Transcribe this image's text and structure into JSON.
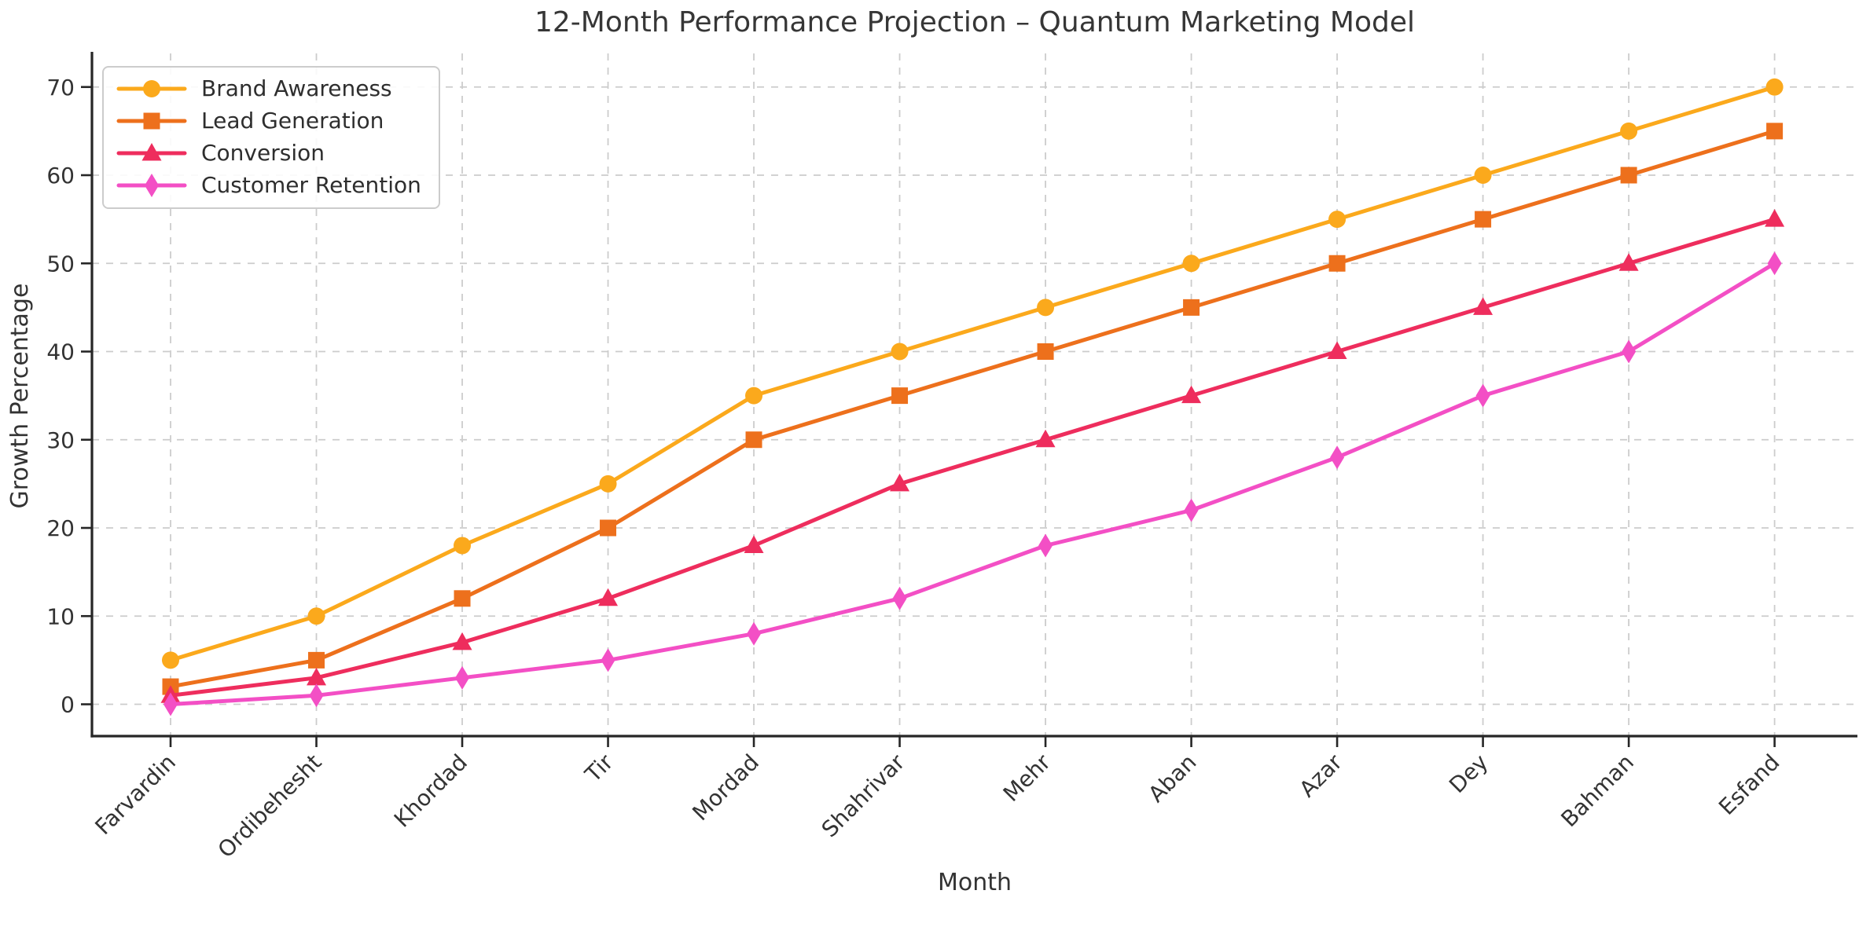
{
  "figure": {
    "title": "12-Month Performance Projection – Quantum Marketing Model"
  },
  "chart_data": {
    "type": "line",
    "title": "12-Month Performance Projection – Quantum Marketing Model",
    "xlabel": "Month",
    "ylabel": "Growth Percentage",
    "categories": [
      "Farvardin",
      "Ordibehesht",
      "Khordad",
      "Tir",
      "Mordad",
      "Shahrivar",
      "Mehr",
      "Aban",
      "Azar",
      "Dey",
      "Bahman",
      "Esfand"
    ],
    "series": [
      {
        "name": "Brand Awareness",
        "color": "#FBA91C",
        "marker": "circle",
        "values": [
          5,
          10,
          18,
          25,
          35,
          40,
          45,
          50,
          55,
          60,
          65,
          70
        ]
      },
      {
        "name": "Lead Generation",
        "color": "#ED701C",
        "marker": "square",
        "values": [
          2,
          5,
          12,
          20,
          30,
          35,
          40,
          45,
          50,
          55,
          60,
          65
        ]
      },
      {
        "name": "Conversion",
        "color": "#EE2D5D",
        "marker": "triangle",
        "values": [
          1,
          3,
          7,
          12,
          18,
          25,
          30,
          35,
          40,
          45,
          50,
          55
        ]
      },
      {
        "name": "Customer Retention",
        "color": "#F34FC5",
        "marker": "diamond",
        "values": [
          0,
          1,
          3,
          5,
          8,
          12,
          18,
          22,
          28,
          35,
          40,
          50
        ]
      }
    ],
    "ylim": [
      0,
      70
    ],
    "yticks": [
      0,
      10,
      20,
      30,
      40,
      50,
      60,
      70
    ],
    "grid": true,
    "grid_style": "dashed",
    "x_tick_rotation": 45,
    "legend_position": "upper-left"
  },
  "style": {
    "background": "#ffffff",
    "grid_color": "#cccccc",
    "spine_color": "#262626",
    "text_color": "#333333",
    "legend_border": "#cccccc"
  }
}
